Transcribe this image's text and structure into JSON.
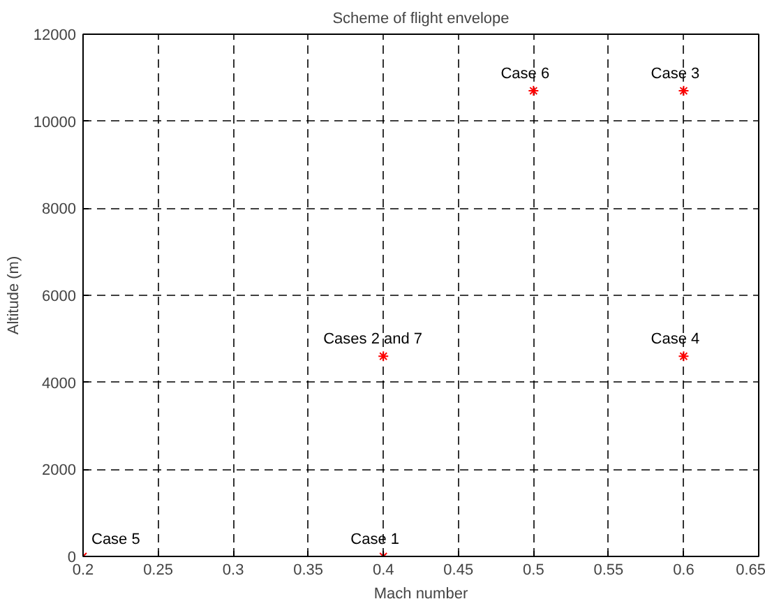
{
  "chart_data": {
    "type": "scatter",
    "title": "Scheme of flight envelope",
    "xlabel": "Mach number",
    "ylabel": "Altitude (m)",
    "x": [
      0.2,
      0.4,
      0.4,
      0.6,
      0.5,
      0.6
    ],
    "series": [
      {
        "color": "#ff0000",
        "values": [
          0,
          0,
          4600,
          4600,
          10700,
          10700
        ]
      }
    ],
    "xlim": [
      0.2,
      0.65
    ],
    "xticks": [
      0.2,
      0.25,
      0.3,
      0.35,
      0.4,
      0.45,
      0.5,
      0.55,
      0.6,
      0.65
    ],
    "ylim": [
      0,
      12000
    ],
    "yticks": [
      0,
      2000,
      4000,
      6000,
      8000,
      10000,
      12000
    ],
    "grid": true,
    "marker": "cross",
    "annotations": [
      {
        "text": "Case 5",
        "x": 0.2,
        "y": 0
      },
      {
        "text": "Case 1",
        "x": 0.4,
        "y": 0
      },
      {
        "text": "Cases 2 and  7",
        "x": 0.4,
        "y": 4600
      },
      {
        "text": "Case 4",
        "x": 0.6,
        "y": 4600
      },
      {
        "text": "Case 6",
        "x": 0.5,
        "y": 10700
      },
      {
        "text": "Case 3",
        "x": 0.6,
        "y": 10700
      }
    ]
  }
}
